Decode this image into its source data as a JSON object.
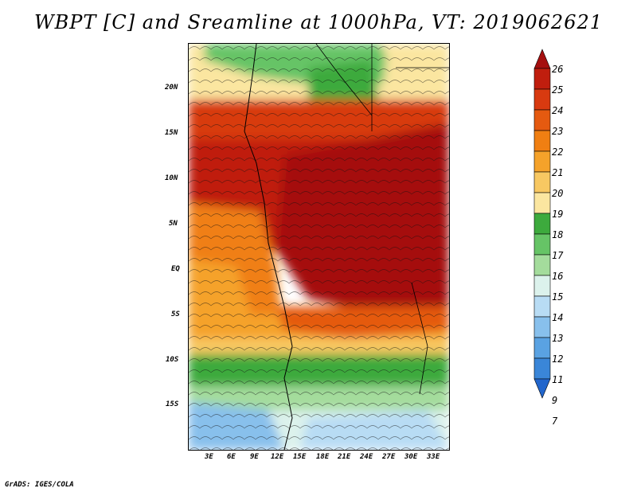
{
  "title": "WBPT [C] and Sreamline at 1000hPa, VT: 2019062621",
  "credit": "GrADS: IGES/COLA",
  "map": {
    "lat_labels": [
      "20N",
      "15N",
      "10N",
      "5N",
      "EQ",
      "5S",
      "10S",
      "15S"
    ],
    "lon_labels": [
      "3E",
      "6E",
      "9E",
      "12E",
      "15E",
      "18E",
      "21E",
      "24E",
      "27E",
      "30E",
      "33E"
    ]
  },
  "colorbar": {
    "labels": [
      "26",
      "25",
      "24",
      "23",
      "22",
      "21",
      "20",
      "19",
      "18",
      "17",
      "16",
      "15",
      "14",
      "13",
      "12",
      "11",
      "9",
      "7"
    ],
    "colors": [
      "#a50f0f",
      "#c01e0e",
      "#d83a10",
      "#e55a10",
      "#f07f12",
      "#f5a22a",
      "#f8c862",
      "#fbe6a0",
      "#3daa3d",
      "#66c466",
      "#a4dc9c",
      "#dcf2ec",
      "#b8dcf4",
      "#88c0ec",
      "#5aa2e2",
      "#3a86d8",
      "#2266cc"
    ]
  }
}
